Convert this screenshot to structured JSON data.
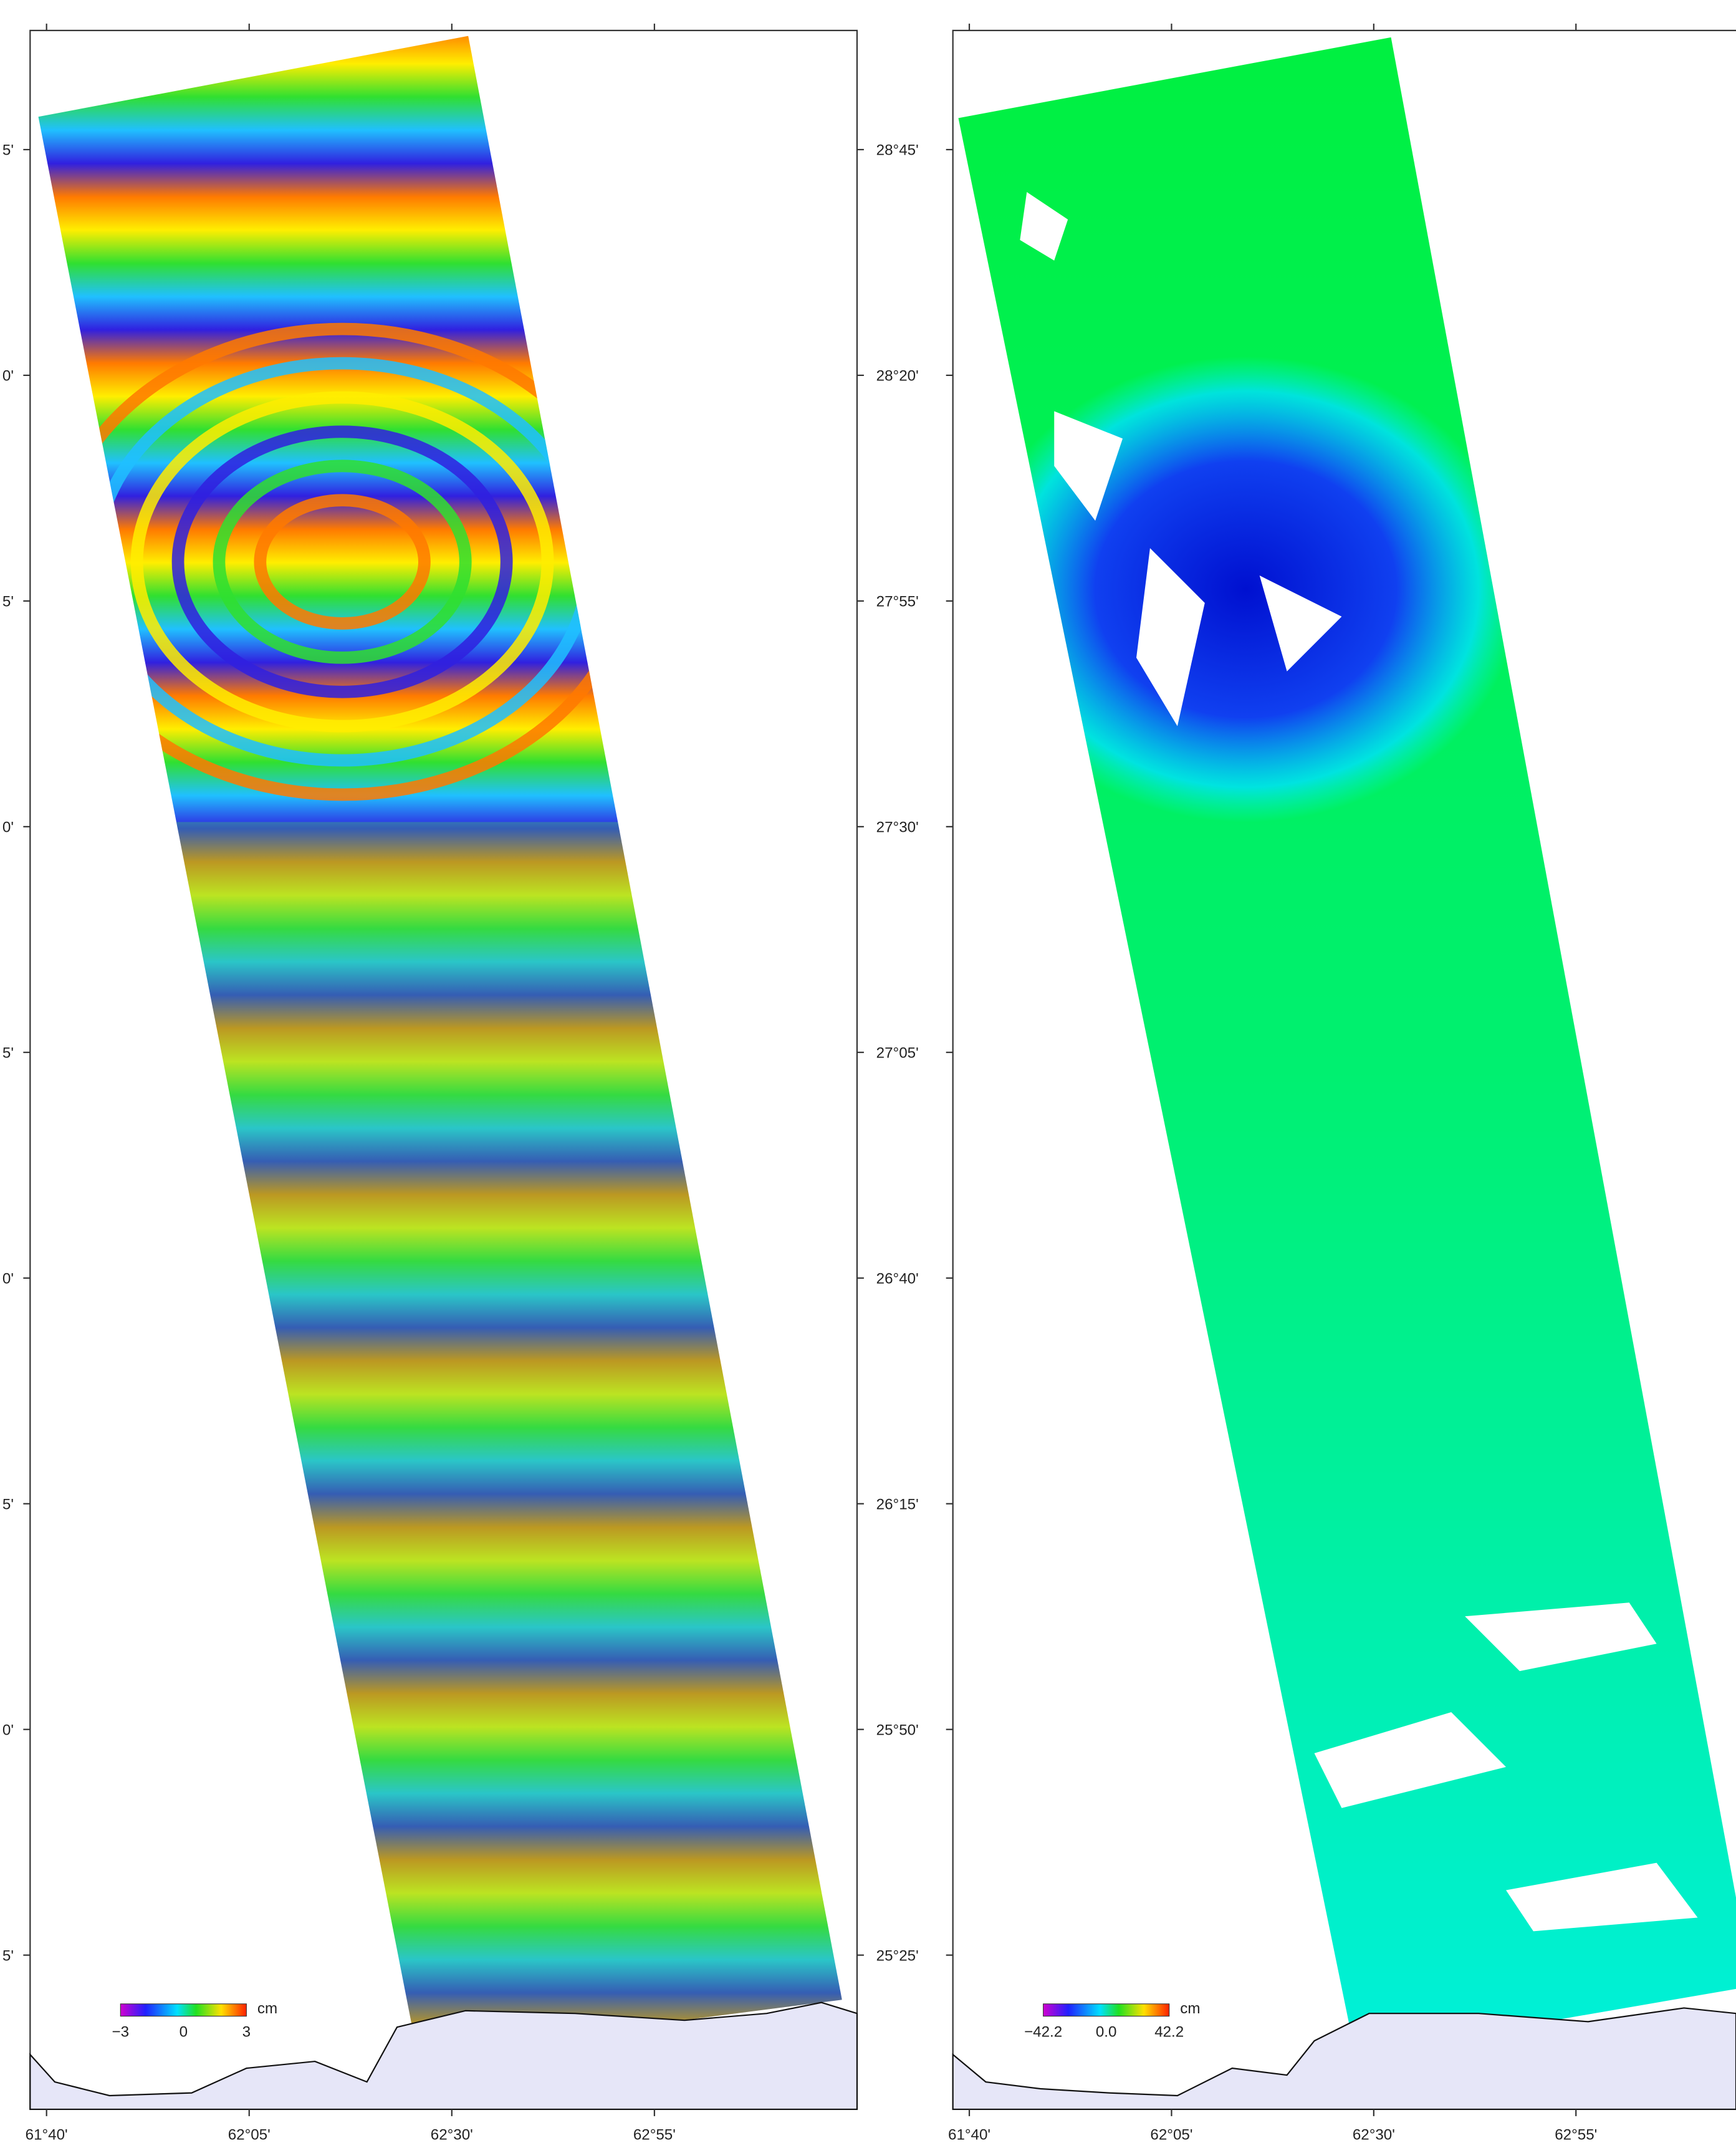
{
  "left_panel": {
    "lat_labels": [
      "5'",
      "0'",
      "5'",
      "0'",
      "5'",
      "0'",
      "5'",
      "0'",
      "5'"
    ],
    "lon_labels": [
      "61°40'",
      "62°05'",
      "62°30'",
      "62°55'"
    ],
    "colorbar": {
      "min": "−3",
      "mid": "0",
      "max": "3",
      "unit": "cm"
    }
  },
  "right_panel": {
    "lat_labels": [
      "28°45'",
      "28°20'",
      "27°55'",
      "27°30'",
      "27°05'",
      "26°40'",
      "26°15'",
      "25°50'",
      "25°25'"
    ],
    "lon_labels": [
      "61°40'",
      "62°05'",
      "62°30'",
      "62°55'"
    ],
    "colorbar": {
      "min": "−42.2",
      "mid": "0.0",
      "max": "42.2",
      "unit": "cm"
    }
  }
}
